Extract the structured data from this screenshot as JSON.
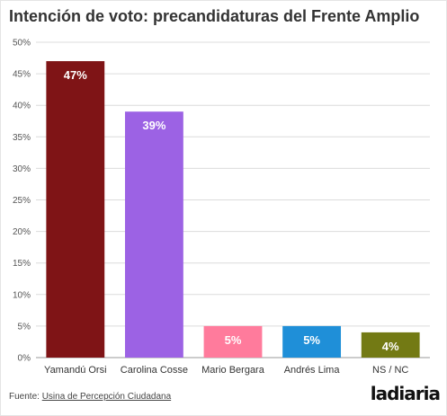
{
  "title": "Intención de voto: precandidaturas del Frente Amplio",
  "source": {
    "prefix": "Fuente:",
    "link_text": "Usina de Percepción Ciudadana"
  },
  "brand": "ladiaria",
  "chart_data": {
    "type": "bar",
    "title": "Intención de voto: precandidaturas del Frente Amplio",
    "categories": [
      "Yamandú Orsi",
      "Carolina Cosse",
      "Mario Bergara",
      "Andrés Lima",
      "NS / NC"
    ],
    "values": [
      47,
      39,
      5,
      5,
      4
    ],
    "data_labels": [
      "47%",
      "39%",
      "5%",
      "5%",
      "4%"
    ],
    "colors": [
      "#7f1416",
      "#9c62e4",
      "#ff7b9c",
      "#1f8fd8",
      "#737a14"
    ],
    "ylim": [
      0,
      50
    ],
    "yticks": [
      0,
      5,
      10,
      15,
      20,
      25,
      30,
      35,
      40,
      45,
      50
    ],
    "ytick_labels": [
      "0%",
      "5%",
      "10%",
      "15%",
      "20%",
      "25%",
      "30%",
      "35%",
      "40%",
      "45%",
      "50%"
    ],
    "grid": true,
    "legend": "none"
  }
}
